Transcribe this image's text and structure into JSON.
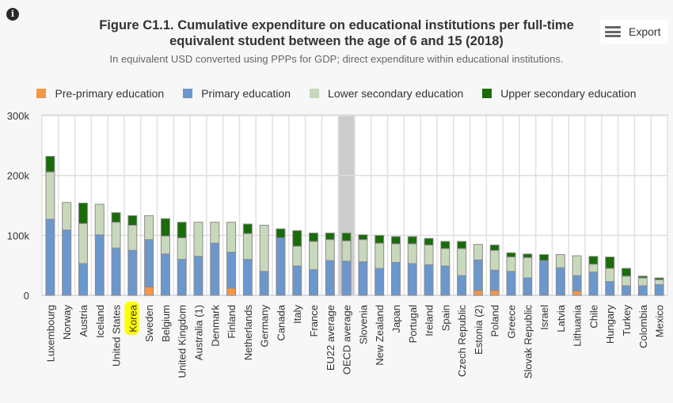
{
  "header": {
    "info_icon": "info-icon",
    "title_line1": "Figure C1.1. Cumulative expenditure on educational institutions per full-time",
    "title_line2": "equivalent student between the age of 6 and 15 (2018)",
    "subtitle": "In equivalent USD converted using PPPs for GDP; direct expenditure within educational institutions.",
    "export_label": "Export",
    "export_icon": "menu-icon"
  },
  "legend": [
    {
      "label": "Pre-primary education",
      "color": "#f79646"
    },
    {
      "label": "Primary education",
      "color": "#6b97cd"
    },
    {
      "label": "Lower secondary education",
      "color": "#c8d9bb"
    },
    {
      "label": "Upper secondary education",
      "color": "#1a6b0a"
    }
  ],
  "highlight": {
    "category": "Korea",
    "color": "#ffff00"
  },
  "reference_category": {
    "category": "OECD average",
    "band_color": "#cccccc"
  },
  "chart_data": {
    "type": "bar",
    "stacked": true,
    "title": "Figure C1.1. Cumulative expenditure on educational institutions per full-time equivalent student between the age of 6 and 15 (2018)",
    "subtitle": "In equivalent USD converted using PPPs for GDP; direct expenditure within educational institutions.",
    "xlabel": "",
    "ylabel": "",
    "ylim": [
      0,
      300000
    ],
    "yticks": [
      0,
      100000,
      200000,
      300000
    ],
    "ytick_labels": [
      "0",
      "100k",
      "200k",
      "300k"
    ],
    "grid": true,
    "legend_position": "top",
    "categories": [
      "Luxembourg",
      "Norway",
      "Austria",
      "Iceland",
      "United States",
      "Korea",
      "Sweden",
      "Belgium",
      "United Kingdom",
      "Australia (1)",
      "Denmark",
      "Finland",
      "Netherlands",
      "Germany",
      "Canada",
      "Italy",
      "France",
      "EU22 average",
      "OECD average",
      "Slovenia",
      "New Zealand",
      "Japan",
      "Portugal",
      "Ireland",
      "Spain",
      "Czech Republic",
      "Estonia (2)",
      "Poland",
      "Greece",
      "Slovak Republic",
      "Israel",
      "Latvia",
      "Lithuania",
      "Chile",
      "Hungary",
      "Turkey",
      "Colombia",
      "Mexico"
    ],
    "series": [
      {
        "name": "Pre-primary education",
        "color": "#f79646",
        "values": [
          0,
          0,
          0,
          0,
          0,
          0,
          14000,
          0,
          0,
          0,
          0,
          12000,
          0,
          0,
          0,
          0,
          0,
          0,
          0,
          0,
          0,
          0,
          0,
          0,
          0,
          0,
          8000,
          8000,
          0,
          0,
          0,
          0,
          7000,
          0,
          0,
          0,
          0,
          0
        ]
      },
      {
        "name": "Primary education",
        "color": "#6b97cd",
        "values": [
          127000,
          109000,
          53000,
          101000,
          79000,
          75000,
          79000,
          69000,
          60000,
          65000,
          87000,
          60000,
          60000,
          40000,
          96000,
          49000,
          43000,
          58000,
          57000,
          56000,
          45000,
          55000,
          53000,
          51000,
          49000,
          33000,
          51000,
          34000,
          40000,
          29000,
          58000,
          46000,
          26000,
          39000,
          23000,
          16000,
          16000,
          18000
        ]
      },
      {
        "name": "Lower secondary education",
        "color": "#c8d9bb",
        "values": [
          79000,
          46000,
          67000,
          51000,
          43000,
          42000,
          40000,
          30000,
          36000,
          57000,
          35000,
          50000,
          43000,
          77000,
          0,
          33000,
          47000,
          35000,
          34000,
          37000,
          42000,
          31000,
          33000,
          33000,
          29000,
          45000,
          26000,
          33000,
          24000,
          34000,
          0,
          22000,
          33000,
          13000,
          22000,
          16000,
          13000,
          8000
        ]
      },
      {
        "name": "Upper secondary education",
        "color": "#1a6b0a",
        "values": [
          26000,
          0,
          34000,
          0,
          16000,
          16000,
          0,
          29000,
          26000,
          0,
          0,
          0,
          16000,
          0,
          15000,
          26000,
          14000,
          11000,
          13000,
          8000,
          13000,
          12000,
          12000,
          11000,
          12000,
          12000,
          0,
          9000,
          7000,
          6000,
          10000,
          0,
          0,
          13000,
          19000,
          13000,
          3000,
          3000
        ]
      }
    ]
  }
}
